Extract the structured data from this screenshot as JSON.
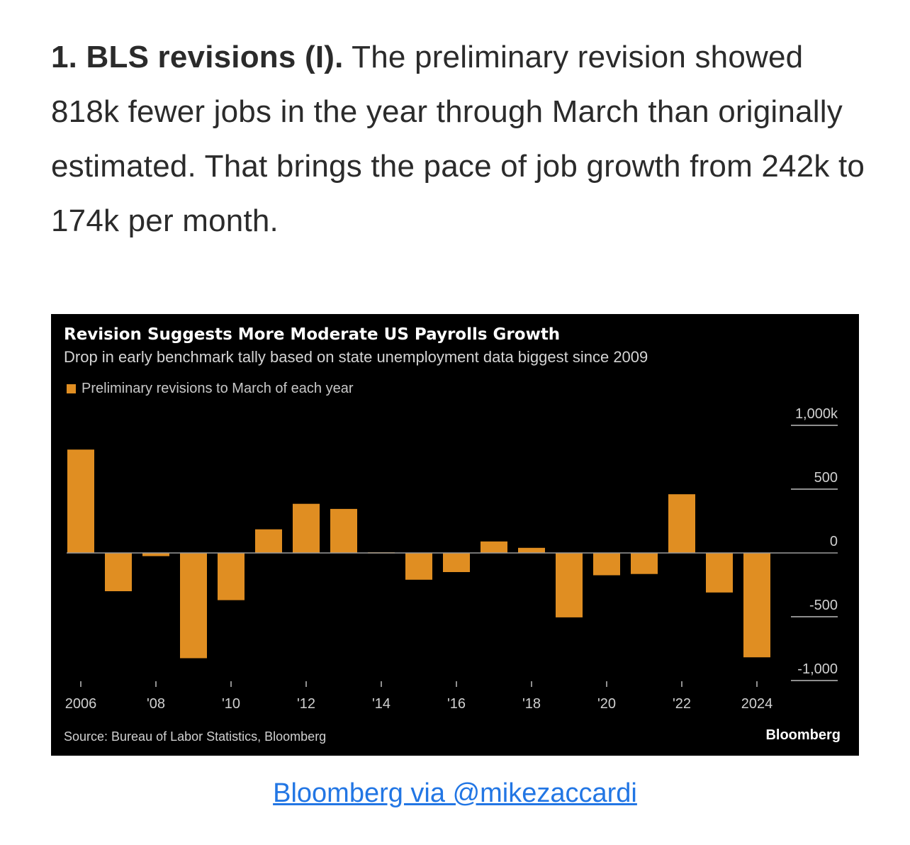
{
  "article": {
    "heading": "1. BLS revisions (I).",
    "body": " The preliminary revision showed 818k fewer jobs in the year through March than originally estimated. That brings the pace of job growth from 242k to 174k per month."
  },
  "chart_data": {
    "type": "bar",
    "title": "Revision Suggests More Moderate US Payrolls Growth",
    "subtitle": "Drop in early benchmark tally based on state unemployment data biggest since 2009",
    "legend": "Preliminary revisions to March of each year",
    "categories": [
      "2006",
      "2007",
      "2008",
      "2009",
      "2010",
      "2011",
      "2012",
      "2013",
      "2014",
      "2015",
      "2016",
      "2017",
      "2018",
      "2019",
      "2020",
      "2021",
      "2022",
      "2023",
      "2024"
    ],
    "values": [
      810,
      -300,
      -25,
      -825,
      -370,
      185,
      385,
      345,
      5,
      -210,
      -150,
      90,
      40,
      -505,
      -175,
      -165,
      460,
      -310,
      -818
    ],
    "x_tick_labels": [
      "2006",
      "'08",
      "'10",
      "'12",
      "'14",
      "'16",
      "'18",
      "'20",
      "'22",
      "2024"
    ],
    "y_ticks": [
      1000,
      500,
      0,
      -500,
      -1000
    ],
    "y_tick_labels": [
      "1,000k",
      "500",
      "0",
      "-500",
      "-1,000"
    ],
    "ylim": [
      -1000,
      1000
    ],
    "source": "Source: Bureau of Labor Statistics, Bloomberg",
    "brand": "Bloomberg",
    "colors": {
      "bar": "#e08e22",
      "background": "#000000"
    }
  },
  "credit": {
    "text": "Bloomberg via @mikezaccardi"
  }
}
